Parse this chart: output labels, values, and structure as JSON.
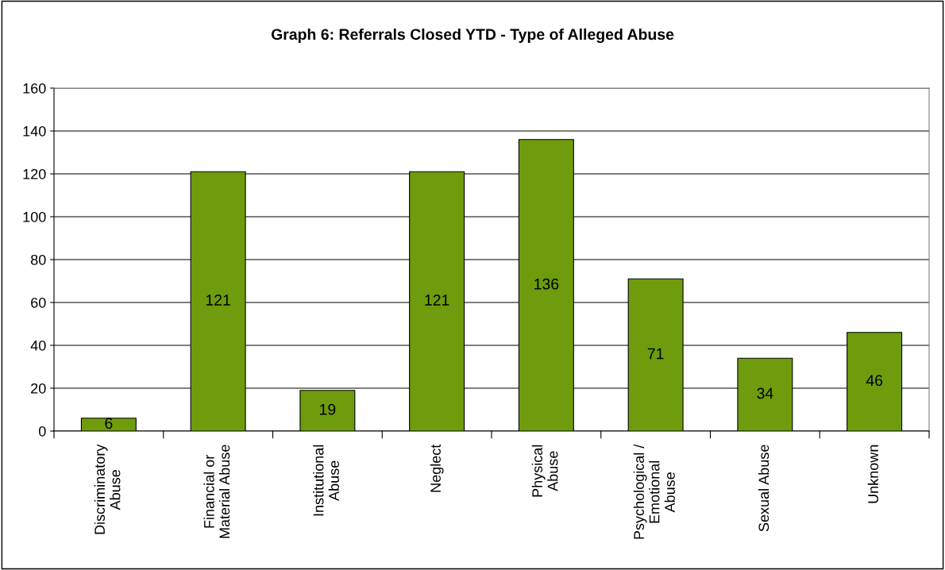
{
  "chart_data": {
    "type": "bar",
    "title": "Graph 6: Referrals Closed YTD - Type of Alleged Abuse",
    "categories": [
      "Discriminatory\nAbuse",
      "Financial or\nMaterial Abuse",
      "Institutional\nAbuse",
      "Neglect",
      "Physical\nAbuse",
      "Psychological /\nEmotional\nAbuse",
      "Sexual Abuse",
      "Unknown"
    ],
    "values": [
      6,
      121,
      19,
      121,
      136,
      71,
      34,
      46
    ],
    "color": "#6e9c0c",
    "ylim": [
      0,
      160
    ],
    "yticks": [
      0,
      20,
      40,
      60,
      80,
      100,
      120,
      140,
      160
    ],
    "grid": "y",
    "data_labels": true,
    "legend": false
  }
}
